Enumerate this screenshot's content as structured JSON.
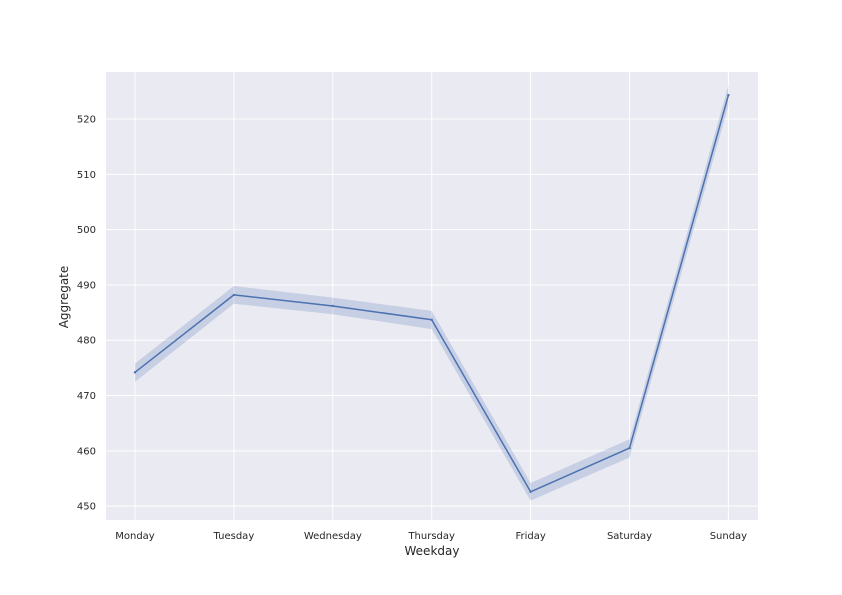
{
  "chart_data": {
    "type": "line",
    "title": "",
    "xlabel": "Weekday",
    "ylabel": "Aggregate",
    "categories": [
      "Monday",
      "Tuesday",
      "Wednesday",
      "Thursday",
      "Friday",
      "Saturday",
      "Sunday"
    ],
    "series": [
      {
        "values": [
          474.2,
          488.2,
          486.2,
          483.7,
          452.6,
          460.5,
          524.3
        ],
        "ci_lower": [
          472.5,
          486.6,
          484.7,
          482.0,
          451.0,
          458.8,
          522.4
        ],
        "ci_upper": [
          475.8,
          489.8,
          487.7,
          485.3,
          454.2,
          462.1,
          526.1
        ],
        "color": "#4c72b0"
      }
    ],
    "ylim": [
      447.5,
      528.5
    ],
    "yticks": [
      450,
      460,
      470,
      480,
      490,
      500,
      510,
      520
    ],
    "grid": true,
    "background": "#eaeaf2",
    "gridcolor": "#ffffff"
  }
}
